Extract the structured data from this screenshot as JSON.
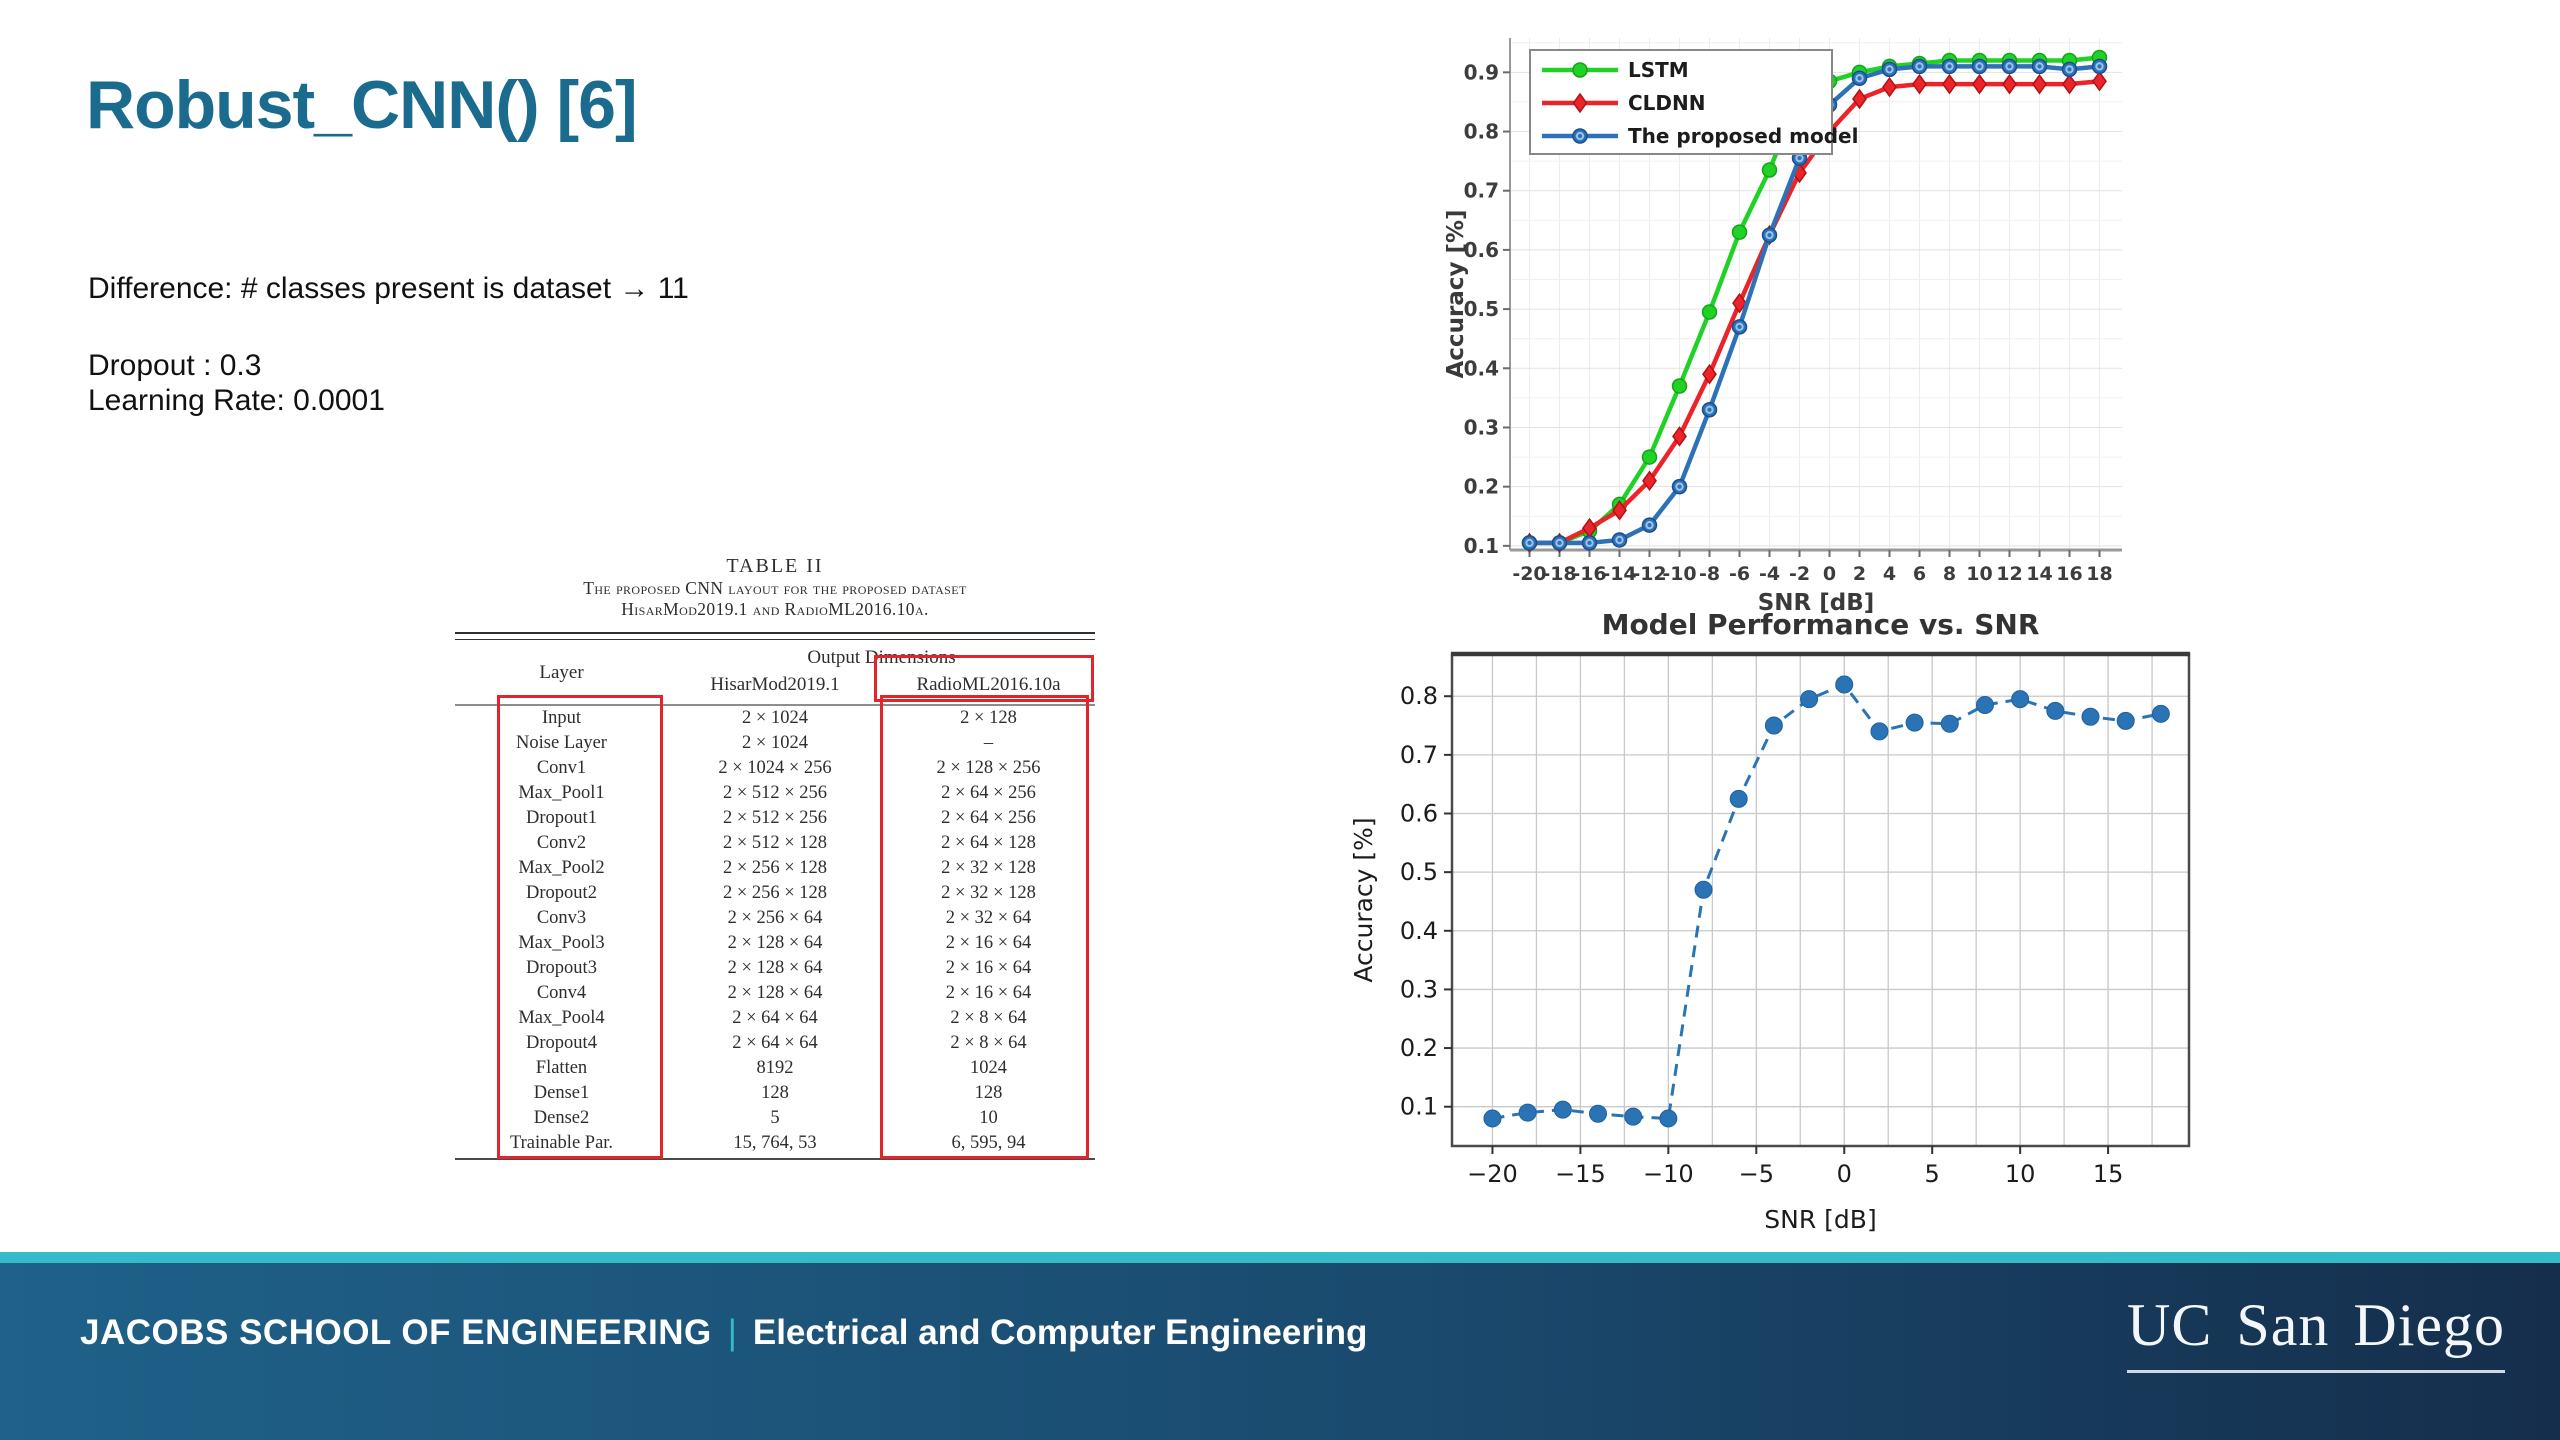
{
  "slide": {
    "title": "Robust_CNN() [6]",
    "body": {
      "difference": "Difference: # classes present is dataset → 11",
      "dropout": "Dropout : 0.3",
      "learning_rate": "Learning Rate: 0.0001"
    }
  },
  "colors": {
    "title": "#1b6b8e",
    "table_highlight": "#e3242b",
    "footer_strip": "#34bac8",
    "footer_gradient_left": "#1f6189",
    "footer_gradient_right": "#152e4c"
  },
  "paper_table": {
    "caption_number": "TABLE II",
    "caption_line1": "The proposed CNN layout for the proposed dataset",
    "caption_line2": "HisarMod2019.1 and RadioML2016.10a.",
    "col_headers": {
      "layer": "Layer",
      "group": "Output Dimensions",
      "col1": "HisarMod2019.1",
      "col2": "RadioML2016.10a"
    },
    "rows": [
      [
        "Input",
        "2 × 1024",
        "2 × 128"
      ],
      [
        "Noise Layer",
        "2 × 1024",
        "–"
      ],
      [
        "Conv1",
        "2 × 1024 × 256",
        "2 × 128 × 256"
      ],
      [
        "Max_Pool1",
        "2 × 512 × 256",
        "2 × 64 × 256"
      ],
      [
        "Dropout1",
        "2 × 512 × 256",
        "2 × 64 × 256"
      ],
      [
        "Conv2",
        "2 × 512 × 128",
        "2 × 64 × 128"
      ],
      [
        "Max_Pool2",
        "2 × 256 × 128",
        "2 × 32 × 128"
      ],
      [
        "Dropout2",
        "2 × 256 × 128",
        "2 × 32 × 128"
      ],
      [
        "Conv3",
        "2 × 256 × 64",
        "2 × 32 × 64"
      ],
      [
        "Max_Pool3",
        "2 × 128 × 64",
        "2 × 16 × 64"
      ],
      [
        "Dropout3",
        "2 × 128 × 64",
        "2 × 16 × 64"
      ],
      [
        "Conv4",
        "2 × 128 × 64",
        "2 × 16 × 64"
      ],
      [
        "Max_Pool4",
        "2 × 64 × 64",
        "2 × 8 × 64"
      ],
      [
        "Dropout4",
        "2 × 64 × 64",
        "2 × 8 × 64"
      ],
      [
        "Flatten",
        "8192",
        "1024"
      ],
      [
        "Dense1",
        "128",
        "128"
      ],
      [
        "Dense2",
        "5",
        "10"
      ],
      [
        "Trainable Par.",
        "15, 764, 53",
        "6, 595, 94"
      ]
    ]
  },
  "chart_data": [
    {
      "type": "line",
      "title": "",
      "xlabel": "SNR [dB]",
      "ylabel": "Accuracy [%]",
      "xlim": [
        -21.3,
        19.5
      ],
      "ylim": [
        0.093,
        0.958
      ],
      "grid": true,
      "legend_position": "top-left",
      "x": [
        -20,
        -18,
        -16,
        -14,
        -12,
        -10,
        -8,
        -6,
        -4,
        -2,
        0,
        2,
        4,
        6,
        8,
        10,
        12,
        14,
        16,
        18
      ],
      "xtick_labels": [
        "-20",
        "-18",
        "-16",
        "-14",
        "-12",
        "-10",
        "-8",
        "-6",
        "-4",
        "-2",
        "0",
        "2",
        "4",
        "6",
        "8",
        "10",
        "12",
        "14",
        "16",
        "18"
      ],
      "yticks": [
        0.1,
        0.2,
        0.3,
        0.4,
        0.5,
        0.6,
        0.7,
        0.8,
        0.9
      ],
      "series": [
        {
          "name": "LSTM",
          "color": "#21d226",
          "edge": "#13a41a",
          "marker": "circle",
          "values": [
            0.105,
            0.105,
            0.125,
            0.17,
            0.25,
            0.37,
            0.495,
            0.63,
            0.735,
            0.86,
            0.885,
            0.9,
            0.91,
            0.915,
            0.92,
            0.92,
            0.92,
            0.92,
            0.92,
            0.925
          ]
        },
        {
          "name": "CLDNN",
          "color": "#ea2429",
          "edge": "#b01215",
          "marker": "diamond",
          "values": [
            0.105,
            0.105,
            0.13,
            0.16,
            0.21,
            0.285,
            0.39,
            0.51,
            0.625,
            0.73,
            0.8,
            0.855,
            0.875,
            0.88,
            0.88,
            0.88,
            0.88,
            0.88,
            0.88,
            0.885
          ]
        },
        {
          "name": "The proposed model",
          "color": "#2d72b8",
          "edge": "#1a4e8a",
          "marker": "circle-open",
          "values": [
            0.105,
            0.105,
            0.105,
            0.11,
            0.135,
            0.2,
            0.33,
            0.47,
            0.625,
            0.755,
            0.845,
            0.89,
            0.905,
            0.91,
            0.91,
            0.91,
            0.91,
            0.91,
            0.905,
            0.91
          ]
        }
      ]
    },
    {
      "type": "scatter",
      "title": "Model Performance vs. SNR",
      "xlabel": "SNR [dB]",
      "ylabel": "Accuracy [%]",
      "xlim": [
        -22.3,
        19.6
      ],
      "ylim": [
        0.033,
        0.872
      ],
      "grid": true,
      "color": "#2a73b5",
      "edge": "#20619e",
      "line_style": "dashed",
      "x": [
        -20,
        -18,
        -16,
        -14,
        -12,
        -10,
        -8,
        -6,
        -4,
        -2,
        0,
        2,
        4,
        6,
        8,
        10,
        12,
        14,
        16,
        18
      ],
      "values": [
        0.08,
        0.09,
        0.095,
        0.088,
        0.083,
        0.08,
        0.47,
        0.625,
        0.75,
        0.795,
        0.82,
        0.74,
        0.755,
        0.753,
        0.785,
        0.795,
        0.775,
        0.765,
        0.758,
        0.77
      ],
      "xticks": [
        -20,
        -15,
        -10,
        -5,
        0,
        5,
        10,
        15
      ],
      "xtick_labels": [
        "−20",
        "−15",
        "−10",
        "−5",
        "0",
        "5",
        "10",
        "15"
      ],
      "yticks": [
        0.1,
        0.2,
        0.3,
        0.4,
        0.5,
        0.6,
        0.7,
        0.8
      ],
      "ytick_labels": [
        "0.1",
        "0.2",
        "0.3",
        "0.4",
        "0.5",
        "0.6",
        "0.7",
        "0.8"
      ]
    }
  ],
  "footer": {
    "school": "JACOBS SCHOOL OF ENGINEERING",
    "separator": "|",
    "department": "Electrical and Computer Engineering",
    "logo_text": "UC San Diego"
  }
}
